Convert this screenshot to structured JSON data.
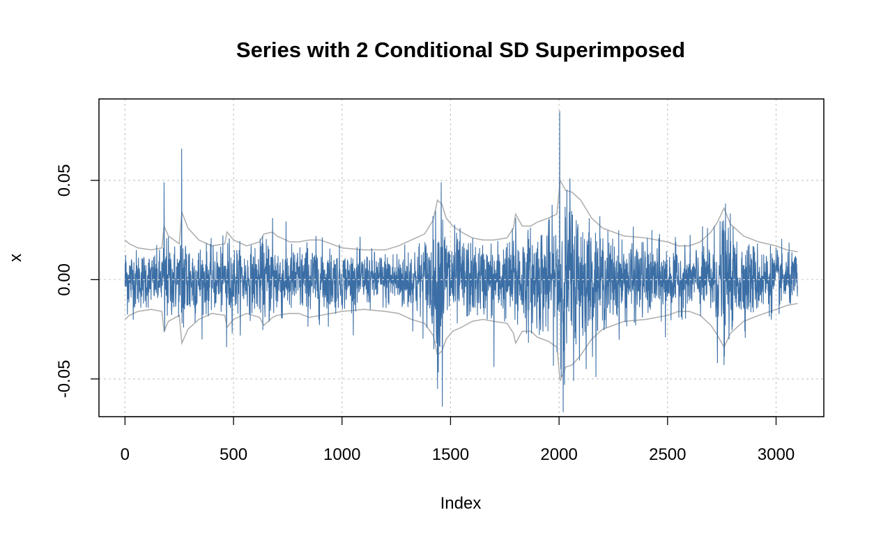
{
  "chart_data": {
    "type": "line",
    "title": "Series with 2 Conditional SD Superimposed",
    "xlabel": "Index",
    "ylabel": "x",
    "xlim": [
      -120,
      3220
    ],
    "ylim": [
      -0.069,
      0.091
    ],
    "x_ticks": [
      0,
      500,
      1000,
      1500,
      2000,
      2500,
      3000
    ],
    "x_tick_labels": [
      "0",
      "500",
      "1000",
      "1500",
      "2000",
      "2500",
      "3000"
    ],
    "y_ticks": [
      -0.05,
      0.0,
      0.05
    ],
    "y_tick_labels": [
      "-0.05",
      "0.00",
      "0.05"
    ],
    "grid": true,
    "grid_style": "dotted",
    "n": 3100,
    "colors": {
      "series": "#3b6ea5",
      "bands": "#b0b0b0",
      "grid": "#c8c8c8",
      "frame": "#000000"
    },
    "series": [
      {
        "role": "returns",
        "color": "#3b6ea5",
        "note_values": "approximate envelope of the observed series (index, value)",
        "spikes": [
          [
            5,
            0.009
          ],
          [
            180,
            0.049
          ],
          [
            183,
            -0.026
          ],
          [
            261,
            0.066
          ],
          [
            263,
            -0.022
          ],
          [
            468,
            -0.034
          ],
          [
            680,
            0.031
          ],
          [
            1440,
            -0.055
          ],
          [
            1457,
            0.049
          ],
          [
            1462,
            -0.064
          ],
          [
            1700,
            -0.044
          ],
          [
            1800,
            0.031
          ],
          [
            2003,
            0.085
          ],
          [
            2010,
            -0.049
          ],
          [
            2025,
            -0.053
          ],
          [
            2050,
            0.051
          ],
          [
            2490,
            -0.029
          ],
          [
            2730,
            -0.042
          ],
          [
            2760,
            -0.043
          ],
          [
            2755,
            0.025
          ]
        ]
      },
      {
        "role": "+2 conditional SD",
        "color": "#b0b0b0",
        "points": [
          [
            0,
            0.02
          ],
          [
            20,
            0.018
          ],
          [
            60,
            0.016
          ],
          [
            120,
            0.015
          ],
          [
            170,
            0.016
          ],
          [
            180,
            0.027
          ],
          [
            200,
            0.022
          ],
          [
            250,
            0.018
          ],
          [
            262,
            0.034
          ],
          [
            290,
            0.026
          ],
          [
            340,
            0.02
          ],
          [
            400,
            0.017
          ],
          [
            460,
            0.018
          ],
          [
            470,
            0.024
          ],
          [
            500,
            0.02
          ],
          [
            560,
            0.017
          ],
          [
            620,
            0.019
          ],
          [
            640,
            0.023
          ],
          [
            680,
            0.024
          ],
          [
            700,
            0.022
          ],
          [
            760,
            0.019
          ],
          [
            800,
            0.019
          ],
          [
            850,
            0.02
          ],
          [
            900,
            0.02
          ],
          [
            950,
            0.018
          ],
          [
            1000,
            0.016
          ],
          [
            1100,
            0.015
          ],
          [
            1200,
            0.015
          ],
          [
            1260,
            0.017
          ],
          [
            1320,
            0.02
          ],
          [
            1380,
            0.023
          ],
          [
            1420,
            0.03
          ],
          [
            1440,
            0.04
          ],
          [
            1460,
            0.038
          ],
          [
            1480,
            0.031
          ],
          [
            1510,
            0.027
          ],
          [
            1550,
            0.024
          ],
          [
            1600,
            0.021
          ],
          [
            1650,
            0.02
          ],
          [
            1700,
            0.02
          ],
          [
            1760,
            0.021
          ],
          [
            1790,
            0.026
          ],
          [
            1800,
            0.033
          ],
          [
            1830,
            0.027
          ],
          [
            1870,
            0.027
          ],
          [
            1900,
            0.029
          ],
          [
            1950,
            0.031
          ],
          [
            1990,
            0.033
          ],
          [
            2005,
            0.05
          ],
          [
            2030,
            0.045
          ],
          [
            2060,
            0.044
          ],
          [
            2100,
            0.04
          ],
          [
            2150,
            0.031
          ],
          [
            2200,
            0.026
          ],
          [
            2300,
            0.022
          ],
          [
            2400,
            0.021
          ],
          [
            2450,
            0.02
          ],
          [
            2500,
            0.019
          ],
          [
            2550,
            0.017
          ],
          [
            2600,
            0.017
          ],
          [
            2650,
            0.019
          ],
          [
            2700,
            0.024
          ],
          [
            2730,
            0.029
          ],
          [
            2760,
            0.036
          ],
          [
            2790,
            0.028
          ],
          [
            2850,
            0.022
          ],
          [
            2920,
            0.019
          ],
          [
            3000,
            0.017
          ],
          [
            3050,
            0.015
          ],
          [
            3100,
            0.014
          ]
        ]
      },
      {
        "role": "-2 conditional SD",
        "color": "#b0b0b0",
        "points": [
          [
            0,
            -0.02
          ],
          [
            20,
            -0.018
          ],
          [
            60,
            -0.016
          ],
          [
            120,
            -0.015
          ],
          [
            170,
            -0.016
          ],
          [
            180,
            -0.026
          ],
          [
            200,
            -0.021
          ],
          [
            250,
            -0.018
          ],
          [
            262,
            -0.032
          ],
          [
            290,
            -0.025
          ],
          [
            340,
            -0.02
          ],
          [
            400,
            -0.017
          ],
          [
            460,
            -0.018
          ],
          [
            470,
            -0.024
          ],
          [
            500,
            -0.02
          ],
          [
            560,
            -0.017
          ],
          [
            620,
            -0.019
          ],
          [
            640,
            -0.023
          ],
          [
            680,
            -0.019
          ],
          [
            700,
            -0.018
          ],
          [
            760,
            -0.017
          ],
          [
            800,
            -0.017
          ],
          [
            850,
            -0.019
          ],
          [
            900,
            -0.018
          ],
          [
            950,
            -0.017
          ],
          [
            1000,
            -0.016
          ],
          [
            1100,
            -0.015
          ],
          [
            1200,
            -0.016
          ],
          [
            1260,
            -0.017
          ],
          [
            1320,
            -0.02
          ],
          [
            1380,
            -0.022
          ],
          [
            1420,
            -0.028
          ],
          [
            1440,
            -0.038
          ],
          [
            1460,
            -0.036
          ],
          [
            1480,
            -0.03
          ],
          [
            1510,
            -0.026
          ],
          [
            1550,
            -0.024
          ],
          [
            1600,
            -0.021
          ],
          [
            1650,
            -0.02
          ],
          [
            1700,
            -0.021
          ],
          [
            1760,
            -0.022
          ],
          [
            1790,
            -0.027
          ],
          [
            1800,
            -0.032
          ],
          [
            1830,
            -0.026
          ],
          [
            1870,
            -0.026
          ],
          [
            1900,
            -0.029
          ],
          [
            1950,
            -0.031
          ],
          [
            1990,
            -0.034
          ],
          [
            2005,
            -0.051
          ],
          [
            2030,
            -0.044
          ],
          [
            2060,
            -0.043
          ],
          [
            2100,
            -0.038
          ],
          [
            2150,
            -0.03
          ],
          [
            2200,
            -0.025
          ],
          [
            2300,
            -0.021
          ],
          [
            2400,
            -0.02
          ],
          [
            2450,
            -0.019
          ],
          [
            2500,
            -0.018
          ],
          [
            2550,
            -0.016
          ],
          [
            2600,
            -0.016
          ],
          [
            2650,
            -0.018
          ],
          [
            2700,
            -0.023
          ],
          [
            2730,
            -0.028
          ],
          [
            2760,
            -0.034
          ],
          [
            2790,
            -0.027
          ],
          [
            2850,
            -0.021
          ],
          [
            2920,
            -0.018
          ],
          [
            3000,
            -0.015
          ],
          [
            3050,
            -0.013
          ],
          [
            3100,
            -0.012
          ]
        ]
      }
    ]
  }
}
